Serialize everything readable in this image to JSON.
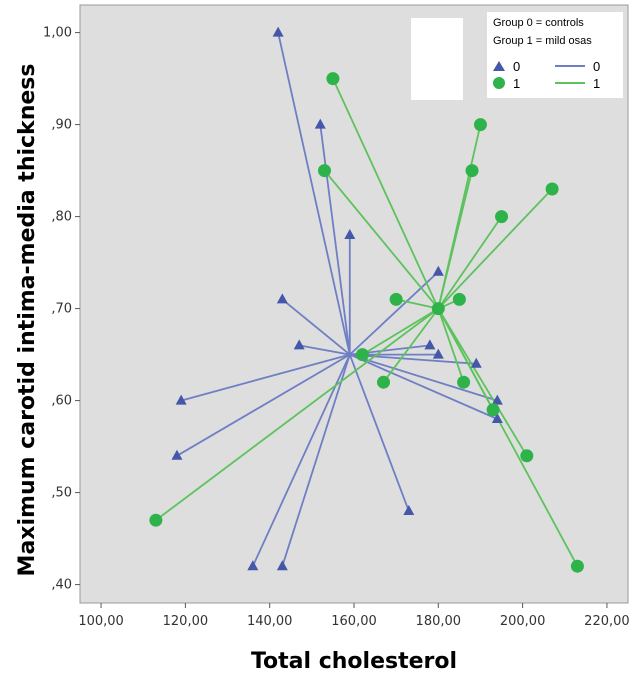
{
  "chart_data": {
    "type": "scatter",
    "xlabel": "Total cholesterol",
    "ylabel": "Maximum carotid intima-media thickness",
    "xlim": [
      95,
      225
    ],
    "ylim": [
      0.38,
      1.03
    ],
    "x_ticks": [
      "100,00",
      "120,00",
      "140,00",
      "160,00",
      "180,00",
      "200,00",
      "220,00"
    ],
    "y_ticks": [
      ",40",
      ",50",
      ",60",
      ",70",
      ",80",
      ",90",
      "1,00"
    ],
    "grid": false,
    "legend_position": "top-right",
    "legend_note": [
      "Group 0 = controls",
      "Group 1 = mild osas"
    ],
    "colors": {
      "group0": "#4457a8",
      "group1": "#2eb34a",
      "line0": "#6f7fc4",
      "line1": "#5cc35c",
      "plot_bg": "#dedede"
    },
    "series": [
      {
        "name": "0",
        "marker": "triangle",
        "centroid": [
          159,
          0.65
        ],
        "points": [
          [
            142,
            1.0
          ],
          [
            152,
            0.9
          ],
          [
            159,
            0.78
          ],
          [
            180,
            0.74
          ],
          [
            143,
            0.71
          ],
          [
            147,
            0.66
          ],
          [
            178,
            0.66
          ],
          [
            180,
            0.65
          ],
          [
            189,
            0.64
          ],
          [
            119,
            0.6
          ],
          [
            194,
            0.6
          ],
          [
            118,
            0.54
          ],
          [
            194,
            0.58
          ],
          [
            173,
            0.48
          ],
          [
            136,
            0.42
          ],
          [
            143,
            0.42
          ]
        ]
      },
      {
        "name": "1",
        "marker": "circle",
        "centroid": [
          180,
          0.7
        ],
        "points": [
          [
            155,
            0.95
          ],
          [
            190,
            0.9
          ],
          [
            153,
            0.85
          ],
          [
            188,
            0.85
          ],
          [
            207,
            0.83
          ],
          [
            195,
            0.8
          ],
          [
            170,
            0.71
          ],
          [
            185,
            0.71
          ],
          [
            180,
            0.7
          ],
          [
            162,
            0.65
          ],
          [
            167,
            0.62
          ],
          [
            186,
            0.62
          ],
          [
            193,
            0.59
          ],
          [
            201,
            0.54
          ],
          [
            113,
            0.47
          ],
          [
            213,
            0.42
          ]
        ]
      }
    ]
  }
}
